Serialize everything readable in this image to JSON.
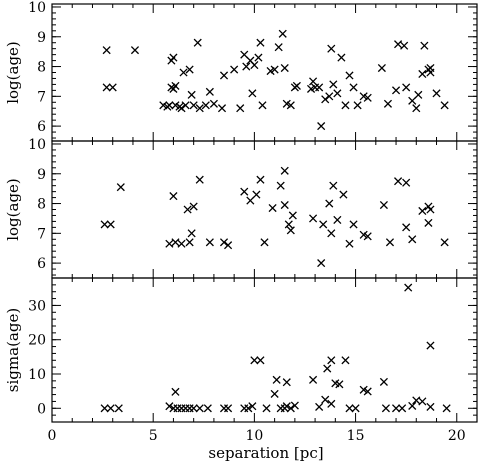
{
  "chart_data": {
    "type": "scatter",
    "x_axis": {
      "label": "separation [pc]",
      "lim": [
        0,
        21
      ],
      "major_ticks": [
        0,
        5,
        10,
        15,
        20
      ],
      "minor_step": 1
    },
    "panels": [
      {
        "id": "top",
        "ylabel": "log(age)",
        "ylim": [
          5.5,
          10.1
        ],
        "major_ticks": [
          6,
          7,
          8,
          9,
          10
        ],
        "minor_step": 0.2,
        "marker": "x",
        "points": [
          [
            2.7,
            8.55
          ],
          [
            2.7,
            7.3
          ],
          [
            3.0,
            7.3
          ],
          [
            4.1,
            8.55
          ],
          [
            5.5,
            6.7
          ],
          [
            5.7,
            6.65
          ],
          [
            5.8,
            6.7
          ],
          [
            5.9,
            7.3
          ],
          [
            5.9,
            8.2
          ],
          [
            6.0,
            7.25
          ],
          [
            6.0,
            8.3
          ],
          [
            6.1,
            7.35
          ],
          [
            6.1,
            6.7
          ],
          [
            6.3,
            6.65
          ],
          [
            6.4,
            6.6
          ],
          [
            6.5,
            7.8
          ],
          [
            6.6,
            6.7
          ],
          [
            6.8,
            7.9
          ],
          [
            6.9,
            7.05
          ],
          [
            7.0,
            6.7
          ],
          [
            7.2,
            8.8
          ],
          [
            7.3,
            6.6
          ],
          [
            7.6,
            6.7
          ],
          [
            7.8,
            7.15
          ],
          [
            8.0,
            6.75
          ],
          [
            8.4,
            6.6
          ],
          [
            8.5,
            7.7
          ],
          [
            9.0,
            7.9
          ],
          [
            9.3,
            6.6
          ],
          [
            9.5,
            8.4
          ],
          [
            9.6,
            8.0
          ],
          [
            9.8,
            8.2
          ],
          [
            9.9,
            7.1
          ],
          [
            10.0,
            8.05
          ],
          [
            10.2,
            8.3
          ],
          [
            10.3,
            8.8
          ],
          [
            10.4,
            6.7
          ],
          [
            10.8,
            7.85
          ],
          [
            11.0,
            7.9
          ],
          [
            11.2,
            8.65
          ],
          [
            11.4,
            9.1
          ],
          [
            11.5,
            7.95
          ],
          [
            11.6,
            6.75
          ],
          [
            11.8,
            6.7
          ],
          [
            12.0,
            7.3
          ],
          [
            12.1,
            7.35
          ],
          [
            12.8,
            7.25
          ],
          [
            12.9,
            7.5
          ],
          [
            13.0,
            7.3
          ],
          [
            13.2,
            7.3
          ],
          [
            13.3,
            6.0
          ],
          [
            13.5,
            6.9
          ],
          [
            13.7,
            7.0
          ],
          [
            13.8,
            8.6
          ],
          [
            13.9,
            7.4
          ],
          [
            14.1,
            7.1
          ],
          [
            14.3,
            8.3
          ],
          [
            14.5,
            6.7
          ],
          [
            14.7,
            7.7
          ],
          [
            14.9,
            7.3
          ],
          [
            15.1,
            6.7
          ],
          [
            15.4,
            7.0
          ],
          [
            15.6,
            6.95
          ],
          [
            16.3,
            7.95
          ],
          [
            16.6,
            6.75
          ],
          [
            17.0,
            7.2
          ],
          [
            17.1,
            8.75
          ],
          [
            17.4,
            8.7
          ],
          [
            17.5,
            7.3
          ],
          [
            17.8,
            6.85
          ],
          [
            18.0,
            6.6
          ],
          [
            18.1,
            7.05
          ],
          [
            18.3,
            7.75
          ],
          [
            18.4,
            8.7
          ],
          [
            18.6,
            7.9
          ],
          [
            18.7,
            7.95
          ],
          [
            18.7,
            7.8
          ],
          [
            19.0,
            7.1
          ],
          [
            19.4,
            6.7
          ]
        ]
      },
      {
        "id": "middle",
        "ylabel": "log(age)",
        "ylim": [
          5.5,
          10.1
        ],
        "major_ticks": [
          6,
          7,
          8,
          9,
          10
        ],
        "minor_step": 0.2,
        "marker": "x",
        "points": [
          [
            2.6,
            7.3
          ],
          [
            2.9,
            7.3
          ],
          [
            3.4,
            8.55
          ],
          [
            5.8,
            6.65
          ],
          [
            6.0,
            8.25
          ],
          [
            6.1,
            6.7
          ],
          [
            6.4,
            6.65
          ],
          [
            6.7,
            7.8
          ],
          [
            6.8,
            6.7
          ],
          [
            6.9,
            7.0
          ],
          [
            7.0,
            7.9
          ],
          [
            7.3,
            8.8
          ],
          [
            7.8,
            6.7
          ],
          [
            8.5,
            6.7
          ],
          [
            8.7,
            6.6
          ],
          [
            9.5,
            8.4
          ],
          [
            9.8,
            8.1
          ],
          [
            10.1,
            8.3
          ],
          [
            10.3,
            8.8
          ],
          [
            10.5,
            6.7
          ],
          [
            10.9,
            7.85
          ],
          [
            11.3,
            8.6
          ],
          [
            11.5,
            9.1
          ],
          [
            11.5,
            7.95
          ],
          [
            11.7,
            7.3
          ],
          [
            11.9,
            7.6
          ],
          [
            11.8,
            7.1
          ],
          [
            12.9,
            7.5
          ],
          [
            13.3,
            6.0
          ],
          [
            13.4,
            7.3
          ],
          [
            13.7,
            8.0
          ],
          [
            13.8,
            7.0
          ],
          [
            13.9,
            8.6
          ],
          [
            14.1,
            7.45
          ],
          [
            14.4,
            8.3
          ],
          [
            14.7,
            6.65
          ],
          [
            14.9,
            7.3
          ],
          [
            15.4,
            6.95
          ],
          [
            15.6,
            6.9
          ],
          [
            16.4,
            7.95
          ],
          [
            16.7,
            6.7
          ],
          [
            17.1,
            8.75
          ],
          [
            17.5,
            8.7
          ],
          [
            17.5,
            7.2
          ],
          [
            17.8,
            6.8
          ],
          [
            18.3,
            7.75
          ],
          [
            18.6,
            7.9
          ],
          [
            18.7,
            7.8
          ],
          [
            18.6,
            7.35
          ],
          [
            19.4,
            6.7
          ]
        ]
      },
      {
        "id": "bottom",
        "ylabel": "sigma(age)",
        "ylim": [
          -4,
          38
        ],
        "major_ticks": [
          0,
          10,
          20,
          30
        ],
        "minor_step": 2,
        "marker": "x",
        "points": [
          [
            2.6,
            0
          ],
          [
            2.9,
            0
          ],
          [
            3.3,
            0
          ],
          [
            5.8,
            0.6
          ],
          [
            6.0,
            0
          ],
          [
            6.1,
            4.8
          ],
          [
            6.2,
            0
          ],
          [
            6.4,
            0
          ],
          [
            6.6,
            0
          ],
          [
            6.8,
            0
          ],
          [
            7.0,
            0
          ],
          [
            7.3,
            0
          ],
          [
            7.7,
            0
          ],
          [
            8.5,
            0
          ],
          [
            8.7,
            0
          ],
          [
            9.5,
            0
          ],
          [
            9.7,
            0
          ],
          [
            9.9,
            0.6
          ],
          [
            10.0,
            14
          ],
          [
            10.3,
            14
          ],
          [
            10.6,
            0
          ],
          [
            11.0,
            4.2
          ],
          [
            11.1,
            8.3
          ],
          [
            11.3,
            0
          ],
          [
            11.5,
            0
          ],
          [
            11.6,
            0.6
          ],
          [
            11.6,
            7.6
          ],
          [
            11.8,
            0
          ],
          [
            12.0,
            0.8
          ],
          [
            12.9,
            8.3
          ],
          [
            13.2,
            0.4
          ],
          [
            13.5,
            2.5
          ],
          [
            13.6,
            11.6
          ],
          [
            13.8,
            14
          ],
          [
            13.8,
            1.3
          ],
          [
            14.0,
            7.3
          ],
          [
            14.2,
            7.0
          ],
          [
            14.5,
            14
          ],
          [
            14.7,
            0
          ],
          [
            15.0,
            0
          ],
          [
            15.4,
            5.4
          ],
          [
            15.6,
            4.9
          ],
          [
            16.4,
            7.7
          ],
          [
            16.5,
            0
          ],
          [
            17.0,
            0
          ],
          [
            17.3,
            0
          ],
          [
            17.6,
            35.2
          ],
          [
            17.8,
            0.7
          ],
          [
            18.0,
            2.3
          ],
          [
            18.3,
            2
          ],
          [
            18.7,
            18.3
          ],
          [
            18.7,
            0.4
          ],
          [
            19.5,
            0
          ]
        ]
      }
    ]
  }
}
